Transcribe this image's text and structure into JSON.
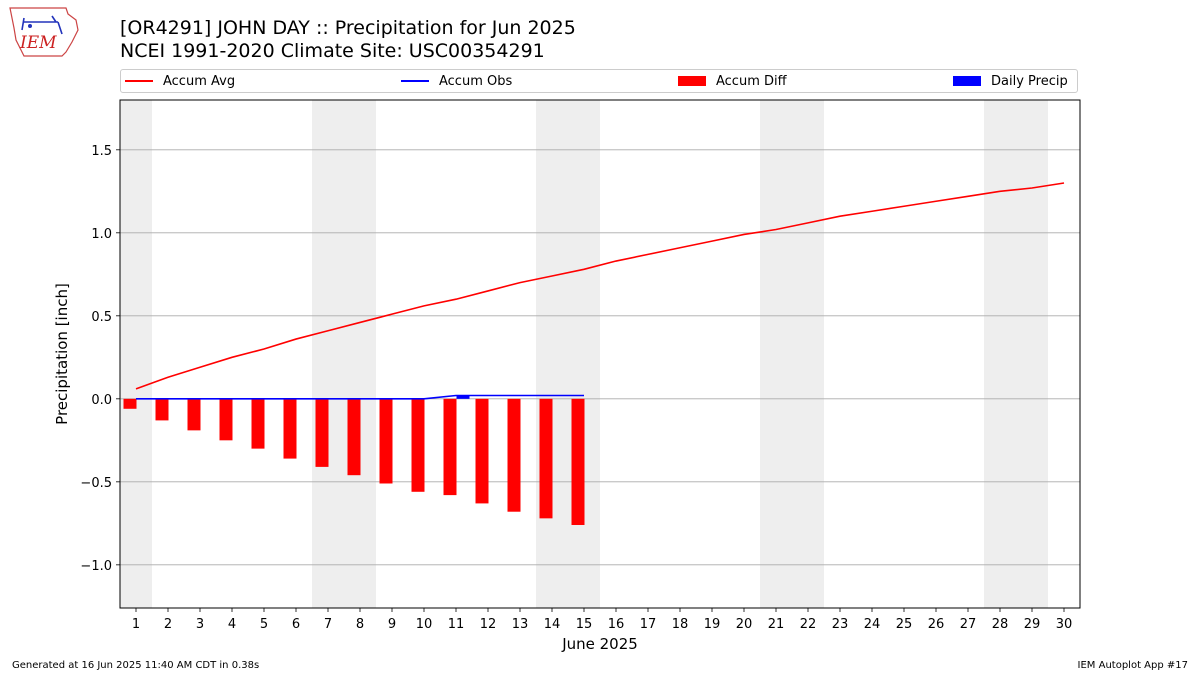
{
  "header": {
    "title_line1": "[OR4291] JOHN DAY :: Precipitation for Jun 2025",
    "title_line2": "NCEI 1991-2020 Climate Site: USC00354291",
    "logo_text": "IEM"
  },
  "legend": {
    "accum_avg": "Accum Avg",
    "accum_obs": "Accum Obs",
    "accum_diff": "Accum Diff",
    "daily_precip": "Daily Precip"
  },
  "footer": {
    "left": "Generated at 16 Jun 2025 11:40 AM CDT in 0.38s",
    "right": "IEM Autoplot App #17"
  },
  "colors": {
    "accum_avg": "#ff0000",
    "accum_obs": "#0000ff",
    "accum_diff": "#ff0000",
    "daily_precip": "#0000ff",
    "weekend_shade": "#eeeeee",
    "grid": "#aaaaaa"
  },
  "chart_data": {
    "type": "bar+line",
    "xlabel": "June 2025",
    "ylabel": "Precipitation [inch]",
    "xlim": [
      0.5,
      30.5
    ],
    "ylim": [
      -1.26,
      1.8
    ],
    "x_ticks": [
      1,
      2,
      3,
      4,
      5,
      6,
      7,
      8,
      9,
      10,
      11,
      12,
      13,
      14,
      15,
      16,
      17,
      18,
      19,
      20,
      21,
      22,
      23,
      24,
      25,
      26,
      27,
      28,
      29,
      30
    ],
    "y_ticks": [
      -1.0,
      -0.5,
      0.0,
      0.5,
      1.0,
      1.5
    ],
    "y_tick_labels": [
      "−1.0",
      "−0.5",
      "0.0",
      "0.5",
      "1.0",
      "1.5"
    ],
    "grid": "horizontal",
    "legend_position": "top",
    "weekend_days": [
      1,
      7,
      8,
      14,
      15,
      21,
      22,
      28,
      29
    ],
    "days": [
      1,
      2,
      3,
      4,
      5,
      6,
      7,
      8,
      9,
      10,
      11,
      12,
      13,
      14,
      15,
      16,
      17,
      18,
      19,
      20,
      21,
      22,
      23,
      24,
      25,
      26,
      27,
      28,
      29,
      30
    ],
    "series": [
      {
        "name": "Accum Avg",
        "type": "line",
        "values": [
          0.06,
          0.13,
          0.19,
          0.25,
          0.3,
          0.36,
          0.41,
          0.46,
          0.51,
          0.56,
          0.6,
          0.65,
          0.7,
          0.74,
          0.78,
          0.83,
          0.87,
          0.91,
          0.95,
          0.99,
          1.02,
          1.06,
          1.1,
          1.13,
          1.16,
          1.19,
          1.22,
          1.25,
          1.27,
          1.3
        ]
      },
      {
        "name": "Accum Obs",
        "type": "line",
        "values": [
          0,
          0,
          0,
          0,
          0,
          0,
          0,
          0,
          0,
          0,
          0.02,
          0.02,
          0.02,
          0.02,
          0.02
        ]
      },
      {
        "name": "Accum Diff",
        "type": "bar",
        "values": [
          -0.06,
          -0.13,
          -0.19,
          -0.25,
          -0.3,
          -0.36,
          -0.41,
          -0.46,
          -0.51,
          -0.56,
          -0.58,
          -0.63,
          -0.68,
          -0.72,
          -0.76
        ]
      },
      {
        "name": "Daily Precip",
        "type": "bar",
        "values": [
          0,
          0,
          0,
          0,
          0,
          0,
          0,
          0,
          0,
          0,
          0.02,
          0,
          0,
          0,
          0
        ]
      }
    ]
  }
}
